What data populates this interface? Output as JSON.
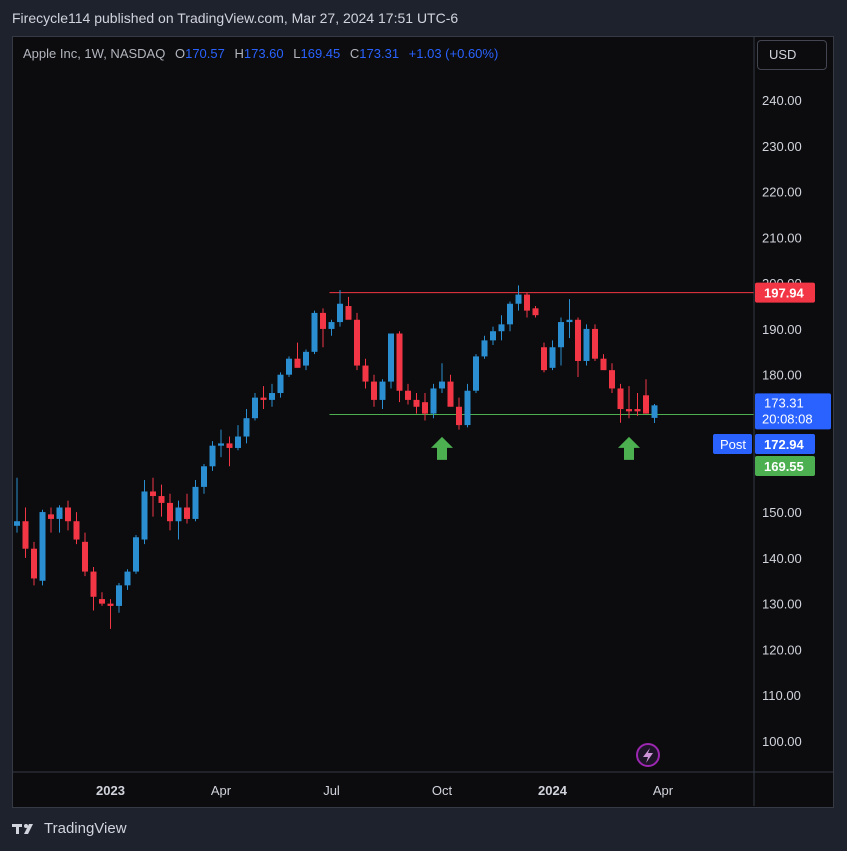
{
  "publisher": "Firecycle114 published on TradingView.com, Mar 27, 2024 17:51 UTC-6",
  "legend": {
    "title": "Apple Inc, 1W, NASDAQ",
    "o_label": "O",
    "o": "170.57",
    "h_label": "H",
    "h": "173.60",
    "l_label": "L",
    "l": "169.45",
    "c_label": "C",
    "c": "173.31",
    "change": "+1.03 (+0.60%)"
  },
  "currency": "USD",
  "footer": "TradingView",
  "colors": {
    "up": "#089981",
    "up_body": "#2a8ed0",
    "down": "#f23645",
    "resistance": "#f23645",
    "support": "#4caf50",
    "arrow": "#4caf50"
  },
  "chart_data": {
    "type": "candlestick",
    "ylim": [
      95,
      247
    ],
    "y_ticks": [
      "240.00",
      "230.00",
      "220.00",
      "210.00",
      "200.00",
      "190.00",
      "180.00",
      "170.00",
      "160.00",
      "150.00",
      "140.00",
      "130.00",
      "120.00",
      "110.00",
      "100.00"
    ],
    "x_ticks": [
      {
        "label": "2023",
        "index": 11
      },
      {
        "label": "Apr",
        "index": 24
      },
      {
        "label": "Jul",
        "index": 37
      },
      {
        "label": "Oct",
        "index": 50
      },
      {
        "label": "2024",
        "index": 63
      },
      {
        "label": "Apr",
        "index": 76
      }
    ],
    "candles": [
      [
        147.0,
        157.5,
        145.5,
        148.0
      ],
      [
        148.0,
        151.0,
        140.0,
        142.0
      ],
      [
        142.0,
        143.5,
        134.0,
        135.5
      ],
      [
        135.0,
        150.5,
        134.0,
        150.0
      ],
      [
        149.5,
        151.0,
        145.5,
        148.5
      ],
      [
        148.5,
        151.5,
        145.5,
        151.0
      ],
      [
        151.0,
        152.5,
        146.0,
        148.0
      ],
      [
        148.0,
        150.0,
        143.0,
        144.0
      ],
      [
        143.5,
        145.5,
        136.0,
        137.0
      ],
      [
        137.0,
        138.0,
        128.5,
        131.5
      ],
      [
        131.0,
        132.5,
        129.5,
        130.0
      ],
      [
        130.0,
        131.0,
        124.5,
        129.5
      ],
      [
        129.5,
        134.5,
        128.0,
        134.0
      ],
      [
        134.0,
        137.5,
        133.0,
        137.0
      ],
      [
        137.0,
        145.0,
        136.5,
        144.5
      ],
      [
        144.0,
        157.0,
        143.0,
        154.5
      ],
      [
        154.5,
        157.5,
        149.0,
        153.5
      ],
      [
        153.5,
        156.0,
        149.0,
        152.0
      ],
      [
        152.0,
        154.0,
        146.0,
        148.0
      ],
      [
        148.0,
        152.5,
        144.0,
        151.0
      ],
      [
        151.0,
        154.0,
        147.5,
        148.5
      ],
      [
        148.5,
        157.0,
        148.0,
        155.5
      ],
      [
        155.5,
        160.5,
        154.0,
        160.0
      ],
      [
        160.0,
        165.5,
        159.0,
        164.5
      ],
      [
        164.5,
        168.0,
        162.0,
        165.0
      ],
      [
        165.0,
        166.5,
        160.0,
        164.0
      ],
      [
        164.0,
        169.0,
        163.5,
        166.5
      ],
      [
        166.5,
        172.5,
        165.0,
        170.5
      ],
      [
        170.5,
        176.0,
        170.0,
        175.0
      ],
      [
        175.0,
        177.5,
        172.5,
        174.5
      ],
      [
        174.5,
        178.0,
        173.0,
        176.0
      ],
      [
        176.0,
        180.5,
        175.0,
        180.0
      ],
      [
        180.0,
        184.0,
        179.5,
        183.5
      ],
      [
        183.5,
        187.0,
        182.5,
        181.5
      ],
      [
        182.0,
        185.5,
        181.0,
        185.0
      ],
      [
        185.0,
        194.0,
        184.5,
        193.5
      ],
      [
        193.5,
        194.5,
        186.0,
        190.0
      ],
      [
        190.0,
        192.0,
        188.5,
        191.5
      ],
      [
        191.5,
        198.5,
        190.5,
        195.5
      ],
      [
        195.0,
        197.0,
        192.5,
        192.0
      ],
      [
        192.0,
        193.5,
        181.0,
        182.0
      ],
      [
        182.0,
        183.5,
        177.0,
        178.5
      ],
      [
        178.5,
        180.0,
        173.0,
        174.5
      ],
      [
        174.5,
        179.0,
        172.5,
        178.5
      ],
      [
        178.5,
        189.0,
        177.0,
        189.0
      ],
      [
        189.0,
        189.5,
        174.0,
        176.5
      ],
      [
        176.5,
        178.0,
        173.5,
        174.5
      ],
      [
        174.5,
        176.0,
        171.5,
        173.0
      ],
      [
        174.0,
        176.0,
        170.0,
        171.5
      ],
      [
        171.5,
        178.0,
        170.5,
        177.0
      ],
      [
        177.0,
        182.5,
        176.0,
        178.5
      ],
      [
        178.5,
        180.0,
        173.5,
        173.0
      ],
      [
        173.0,
        175.0,
        168.0,
        169.0
      ],
      [
        169.0,
        178.0,
        168.5,
        176.5
      ],
      [
        176.5,
        184.5,
        176.0,
        184.0
      ],
      [
        184.0,
        188.5,
        183.5,
        187.5
      ],
      [
        187.5,
        190.5,
        186.5,
        189.5
      ],
      [
        189.5,
        193.0,
        187.5,
        191.0
      ],
      [
        191.0,
        196.0,
        189.5,
        195.5
      ],
      [
        195.5,
        199.5,
        194.0,
        197.5
      ],
      [
        197.5,
        198.0,
        192.5,
        194.0
      ],
      [
        194.5,
        195.0,
        192.5,
        193.0
      ],
      [
        186.0,
        187.0,
        180.5,
        181.0
      ],
      [
        181.5,
        187.5,
        181.0,
        186.0
      ],
      [
        186.0,
        192.5,
        182.0,
        191.5
      ],
      [
        191.5,
        196.5,
        188.0,
        192.0
      ],
      [
        192.0,
        192.5,
        179.5,
        183.0
      ],
      [
        183.0,
        191.0,
        182.0,
        190.0
      ],
      [
        190.0,
        191.0,
        183.0,
        183.5
      ],
      [
        183.5,
        184.5,
        181.5,
        181.0
      ],
      [
        181.0,
        182.5,
        176.0,
        177.0
      ],
      [
        177.0,
        178.0,
        169.5,
        172.5
      ],
      [
        172.5,
        177.5,
        170.5,
        172.0
      ],
      [
        172.5,
        176.0,
        171.0,
        172.0
      ],
      [
        175.5,
        179.0,
        171.5,
        171.5
      ],
      [
        170.57,
        173.6,
        169.45,
        173.31
      ]
    ],
    "resistance": {
      "value": 197.94,
      "label": "197.94",
      "from_index": 37
    },
    "support": {
      "value": 171.3,
      "from_index": 37
    },
    "price_labels": [
      {
        "value": 173.31,
        "label": "173.31",
        "sublabel": "20:08:08",
        "color": "#2962ff"
      },
      {
        "value": 172.94,
        "label": "172.94",
        "tag": "Post",
        "color": "#2962ff"
      },
      {
        "value": 169.55,
        "label": "169.55",
        "color": "#4caf50"
      }
    ],
    "arrows": [
      {
        "index": 50,
        "price": 166
      },
      {
        "index": 72,
        "price": 166
      }
    ]
  }
}
